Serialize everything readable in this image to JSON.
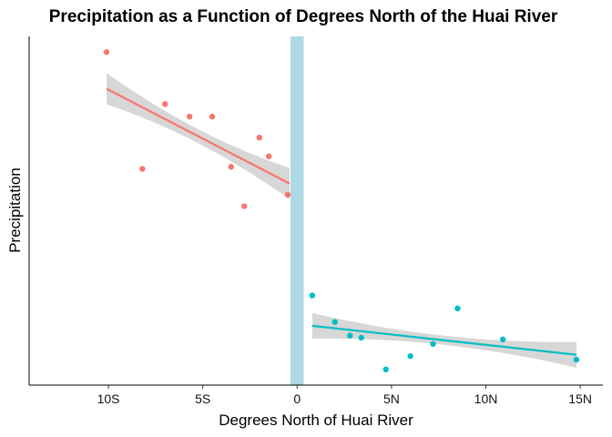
{
  "chart_data": {
    "type": "scatter",
    "title": "Precipitation as a Function of Degrees North of the Huai River",
    "xlabel": "Degrees North of Huai River",
    "ylabel": "Precipitation",
    "xlim": [
      -14.2,
      16.2
    ],
    "ylim": [
      0,
      100
    ],
    "x_ticks": [
      {
        "value": -10,
        "label": "10S"
      },
      {
        "value": -5,
        "label": "5S"
      },
      {
        "value": 0,
        "label": "0"
      },
      {
        "value": 5,
        "label": "5N"
      },
      {
        "value": 10,
        "label": "10N"
      },
      {
        "value": 15,
        "label": "15N"
      }
    ],
    "y_ticks_shown": false,
    "grid": false,
    "legend": "none",
    "river_band": {
      "x_min": -0.35,
      "x_max": 0.35,
      "color": "#ADD8E6"
    },
    "series": [
      {
        "color": "#F8766D",
        "points": [
          {
            "x": -10.1,
            "y": 95.5
          },
          {
            "x": -8.2,
            "y": 62.0
          },
          {
            "x": -7.0,
            "y": 80.6
          },
          {
            "x": -5.7,
            "y": 77.0
          },
          {
            "x": -4.5,
            "y": 77.0
          },
          {
            "x": -3.5,
            "y": 62.6
          },
          {
            "x": -2.8,
            "y": 51.3
          },
          {
            "x": -2.0,
            "y": 71.0
          },
          {
            "x": -1.5,
            "y": 65.6
          },
          {
            "x": -0.5,
            "y": 54.6
          }
        ],
        "fit": {
          "x_start": -10.1,
          "y_start": 85.0,
          "x_end": -0.4,
          "y_end": 57.8,
          "band_halfwidth_ends": 4.5,
          "band_halfwidth_mid": 2.0
        }
      },
      {
        "color": "#00BFC4",
        "points": [
          {
            "x": 0.8,
            "y": 25.7
          },
          {
            "x": 2.0,
            "y": 18.1
          },
          {
            "x": 2.8,
            "y": 14.2
          },
          {
            "x": 3.4,
            "y": 13.6
          },
          {
            "x": 4.7,
            "y": 4.5
          },
          {
            "x": 6.0,
            "y": 8.3
          },
          {
            "x": 7.2,
            "y": 11.8
          },
          {
            "x": 8.5,
            "y": 22.0
          },
          {
            "x": 10.9,
            "y": 13.1
          },
          {
            "x": 14.8,
            "y": 7.3
          }
        ],
        "fit": {
          "x_start": 0.8,
          "y_start": 17.0,
          "x_end": 14.8,
          "y_end": 8.7,
          "band_halfwidth_ends": 3.7,
          "band_halfwidth_mid": 1.3
        }
      }
    ]
  }
}
